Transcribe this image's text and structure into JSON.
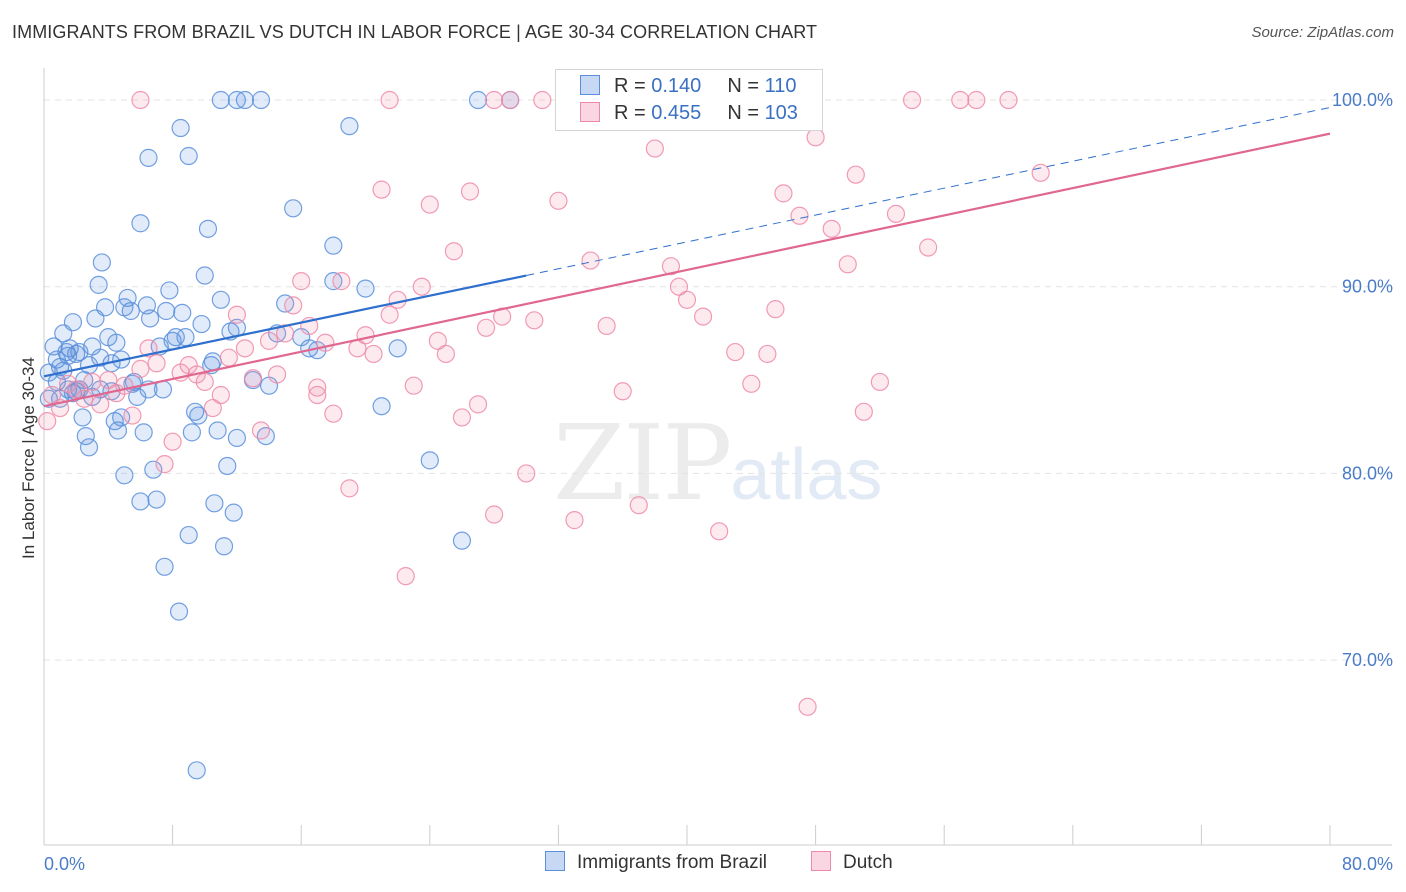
{
  "title": "IMMIGRANTS FROM BRAZIL VS DUTCH IN LABOR FORCE | AGE 30-34 CORRELATION CHART",
  "source": "Source: ZipAtlas.com",
  "watermark": {
    "zip": "ZIP",
    "atlas": "atlas"
  },
  "colors": {
    "blue": "#5b8fdc",
    "pink": "#ee8aa8",
    "blue_line": "#2f6fce",
    "pink_line": "#e06890",
    "tick_blue": "#4a7cc8"
  },
  "legend": {
    "r_label": "R =",
    "n_label": "N =",
    "series": [
      {
        "name": "Immigrants from Brazil",
        "r": "0.140",
        "n": "110"
      },
      {
        "name": "Dutch",
        "r": "0.455",
        "n": "103"
      }
    ]
  },
  "chart_data": {
    "type": "scatter",
    "title": "IMMIGRANTS FROM BRAZIL VS DUTCH IN LABOR FORCE | AGE 30-34 CORRELATION CHART",
    "xlabel": "",
    "ylabel": "In Labor Force | Age 30-34",
    "xlim": [
      0,
      80
    ],
    "ylim": [
      60.1,
      101.5
    ],
    "x_tick_labels": [
      "0.0%",
      "80.0%"
    ],
    "y_ticks": [
      70,
      80,
      90,
      100
    ],
    "y_tick_labels": [
      "70.0%",
      "80.0%",
      "90.0%",
      "100.0%"
    ],
    "grid": true,
    "series": [
      {
        "name": "Immigrants from Brazil",
        "r": 0.14,
        "n": 110,
        "trend": {
          "x0": 0,
          "y0": 85.2,
          "x1": 30,
          "y1": 90.6,
          "dash_to_x": 80,
          "dash_to_y": 99.6
        },
        "points": [
          [
            0.3,
            85.4
          ],
          [
            0.3,
            84.0
          ],
          [
            0.6,
            86.8
          ],
          [
            0.8,
            86.1
          ],
          [
            1.0,
            85.7
          ],
          [
            1.2,
            87.5
          ],
          [
            1.4,
            86.5
          ],
          [
            1.6,
            86.7
          ],
          [
            1.8,
            88.1
          ],
          [
            2.0,
            86.4
          ],
          [
            2.2,
            84.5
          ],
          [
            2.4,
            83.0
          ],
          [
            2.0,
            84.4
          ],
          [
            1.5,
            84.5
          ],
          [
            2.6,
            82.0
          ],
          [
            2.8,
            81.4
          ],
          [
            3.0,
            86.8
          ],
          [
            3.2,
            88.3
          ],
          [
            3.4,
            90.1
          ],
          [
            3.6,
            91.3
          ],
          [
            3.8,
            88.9
          ],
          [
            4.0,
            87.3
          ],
          [
            4.2,
            85.9
          ],
          [
            4.4,
            82.8
          ],
          [
            4.6,
            82.3
          ],
          [
            4.8,
            86.1
          ],
          [
            5.0,
            88.9
          ],
          [
            5.2,
            89.4
          ],
          [
            5.4,
            88.7
          ],
          [
            5.6,
            84.9
          ],
          [
            5.8,
            84.1
          ],
          [
            6.0,
            93.4
          ],
          [
            6.2,
            82.2
          ],
          [
            6.4,
            89.0
          ],
          [
            6.6,
            88.3
          ],
          [
            6.8,
            80.2
          ],
          [
            7.0,
            78.6
          ],
          [
            7.2,
            86.8
          ],
          [
            7.4,
            84.5
          ],
          [
            7.6,
            88.7
          ],
          [
            7.8,
            89.8
          ],
          [
            8.0,
            87.1
          ],
          [
            8.2,
            87.3
          ],
          [
            8.4,
            72.6
          ],
          [
            8.6,
            88.6
          ],
          [
            8.8,
            87.3
          ],
          [
            9.0,
            76.7
          ],
          [
            9.2,
            82.2
          ],
          [
            9.4,
            83.3
          ],
          [
            9.6,
            83.1
          ],
          [
            9.8,
            88.0
          ],
          [
            10.0,
            90.6
          ],
          [
            10.2,
            93.1
          ],
          [
            10.4,
            85.8
          ],
          [
            10.6,
            78.4
          ],
          [
            10.8,
            82.3
          ],
          [
            11.0,
            89.3
          ],
          [
            11.2,
            76.1
          ],
          [
            11.4,
            80.4
          ],
          [
            11.6,
            87.6
          ],
          [
            11.8,
            77.9
          ],
          [
            12.0,
            81.9
          ],
          [
            6.5,
            96.9
          ],
          [
            8.5,
            98.5
          ],
          [
            9.0,
            97.0
          ],
          [
            11.0,
            100.0
          ],
          [
            12.0,
            100.0
          ],
          [
            12.5,
            100.0
          ],
          [
            13.5,
            100.0
          ],
          [
            13.8,
            82.0
          ],
          [
            14.0,
            84.7
          ],
          [
            14.5,
            87.5
          ],
          [
            15.0,
            89.1
          ],
          [
            15.5,
            94.2
          ],
          [
            16.0,
            87.3
          ],
          [
            16.5,
            86.7
          ],
          [
            17.0,
            86.6
          ],
          [
            18.0,
            92.2
          ],
          [
            18.0,
            90.3
          ],
          [
            19.0,
            98.6
          ],
          [
            20.0,
            89.9
          ],
          [
            21.0,
            83.6
          ],
          [
            22.0,
            86.7
          ],
          [
            24.0,
            80.7
          ],
          [
            26.0,
            76.4
          ],
          [
            27.0,
            100.0
          ],
          [
            29.0,
            100.0
          ],
          [
            5.0,
            79.9
          ],
          [
            6.0,
            78.5
          ],
          [
            7.5,
            75.0
          ],
          [
            1.0,
            84.0
          ],
          [
            1.8,
            84.3
          ],
          [
            2.5,
            85.0
          ],
          [
            3.0,
            84.1
          ],
          [
            3.5,
            84.5
          ],
          [
            4.2,
            84.4
          ],
          [
            4.8,
            83.0
          ],
          [
            5.5,
            84.8
          ],
          [
            6.5,
            84.5
          ],
          [
            1.5,
            86.3
          ],
          [
            2.2,
            86.5
          ],
          [
            2.8,
            85.8
          ],
          [
            3.5,
            86.2
          ],
          [
            4.5,
            87.0
          ],
          [
            1.2,
            85.5
          ],
          [
            0.8,
            84.9
          ],
          [
            9.5,
            64.1
          ],
          [
            12.0,
            87.8
          ],
          [
            13.0,
            85.0
          ],
          [
            10.5,
            86.0
          ]
        ]
      },
      {
        "name": "Dutch",
        "r": 0.455,
        "n": 103,
        "trend": {
          "x0": 0,
          "y0": 83.6,
          "x1": 80,
          "y1": 98.2
        },
        "points": [
          [
            0.2,
            82.8
          ],
          [
            0.5,
            84.2
          ],
          [
            1.0,
            83.5
          ],
          [
            1.5,
            84.8
          ],
          [
            2.0,
            84.5
          ],
          [
            2.5,
            84.0
          ],
          [
            3.0,
            84.9
          ],
          [
            3.5,
            83.7
          ],
          [
            4.0,
            85.0
          ],
          [
            4.5,
            84.3
          ],
          [
            5.0,
            84.7
          ],
          [
            5.5,
            83.1
          ],
          [
            6.0,
            85.6
          ],
          [
            6.5,
            86.7
          ],
          [
            7.0,
            85.9
          ],
          [
            7.5,
            80.5
          ],
          [
            8.0,
            81.7
          ],
          [
            8.5,
            85.4
          ],
          [
            9.0,
            85.8
          ],
          [
            9.5,
            85.3
          ],
          [
            10.0,
            84.9
          ],
          [
            10.5,
            83.5
          ],
          [
            11.0,
            84.2
          ],
          [
            11.5,
            86.2
          ],
          [
            12.0,
            88.5
          ],
          [
            12.5,
            86.7
          ],
          [
            13.0,
            85.1
          ],
          [
            13.5,
            82.3
          ],
          [
            14.0,
            87.1
          ],
          [
            14.5,
            85.3
          ],
          [
            15.0,
            87.5
          ],
          [
            15.5,
            89.0
          ],
          [
            16.0,
            90.3
          ],
          [
            16.5,
            87.9
          ],
          [
            17.0,
            84.2
          ],
          [
            17.5,
            87.0
          ],
          [
            18.0,
            83.2
          ],
          [
            18.5,
            90.3
          ],
          [
            19.0,
            79.2
          ],
          [
            19.5,
            86.7
          ],
          [
            20.0,
            87.4
          ],
          [
            20.5,
            86.4
          ],
          [
            21.0,
            95.2
          ],
          [
            21.5,
            88.5
          ],
          [
            22.0,
            89.3
          ],
          [
            22.5,
            74.5
          ],
          [
            23.0,
            84.7
          ],
          [
            24.0,
            94.4
          ],
          [
            24.5,
            87.1
          ],
          [
            25.0,
            86.4
          ],
          [
            25.5,
            91.9
          ],
          [
            26.0,
            83.0
          ],
          [
            26.5,
            95.1
          ],
          [
            27.0,
            83.7
          ],
          [
            27.5,
            87.8
          ],
          [
            28.0,
            77.8
          ],
          [
            28.5,
            88.4
          ],
          [
            29.0,
            100.0
          ],
          [
            30.0,
            80.0
          ],
          [
            31.0,
            100.0
          ],
          [
            32.0,
            94.6
          ],
          [
            33.0,
            77.5
          ],
          [
            34.0,
            91.4
          ],
          [
            35.0,
            87.9
          ],
          [
            36.0,
            84.4
          ],
          [
            37.0,
            78.3
          ],
          [
            38.0,
            97.4
          ],
          [
            39.0,
            91.1
          ],
          [
            39.5,
            90.0
          ],
          [
            40.0,
            89.3
          ],
          [
            41.0,
            88.4
          ],
          [
            42.0,
            76.9
          ],
          [
            43.0,
            86.5
          ],
          [
            43.5,
            100.0
          ],
          [
            44.0,
            84.8
          ],
          [
            45.0,
            86.4
          ],
          [
            45.5,
            88.8
          ],
          [
            46.0,
            95.0
          ],
          [
            47.0,
            93.8
          ],
          [
            47.5,
            67.5
          ],
          [
            48.0,
            98.0
          ],
          [
            49.0,
            93.1
          ],
          [
            50.0,
            91.2
          ],
          [
            50.5,
            96.0
          ],
          [
            51.0,
            83.3
          ],
          [
            52.0,
            84.9
          ],
          [
            53.0,
            93.9
          ],
          [
            54.0,
            100.0
          ],
          [
            55.0,
            92.1
          ],
          [
            57.0,
            100.0
          ],
          [
            58.0,
            100.0
          ],
          [
            60.0,
            100.0
          ],
          [
            62.0,
            96.1
          ],
          [
            28.0,
            100.0
          ],
          [
            35.5,
            100.0
          ],
          [
            34.0,
            99.5
          ],
          [
            6.0,
            100.0
          ],
          [
            21.5,
            100.0
          ],
          [
            36.0,
            100.0
          ],
          [
            45.0,
            100.0
          ],
          [
            17.0,
            84.6
          ],
          [
            23.5,
            90.0
          ],
          [
            30.5,
            88.2
          ]
        ]
      }
    ]
  }
}
